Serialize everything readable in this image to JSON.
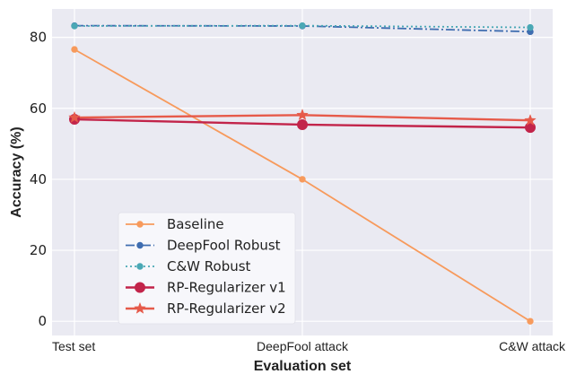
{
  "chart_data": {
    "type": "line",
    "title": "",
    "xlabel": "Evaluation set",
    "ylabel": "Accuracy (%)",
    "categories": [
      "Test set",
      "DeepFool attack",
      "C&W attack"
    ],
    "ylim": [
      -4,
      88
    ],
    "yticks": [
      0,
      20,
      40,
      60,
      80
    ],
    "grid": true,
    "legend_position": "lower-left",
    "series": [
      {
        "name": "Baseline",
        "values": [
          76.6,
          40.0,
          0.0
        ],
        "color": "#f79a5c",
        "marker": "circle",
        "linestyle": "solid"
      },
      {
        "name": "DeepFool Robust",
        "values": [
          83.3,
          83.2,
          81.6
        ],
        "color": "#3f6db0",
        "marker": "circle",
        "linestyle": "dashdot"
      },
      {
        "name": "C&W Robust",
        "values": [
          83.2,
          83.3,
          82.8
        ],
        "color": "#4aa8b5",
        "marker": "circle",
        "linestyle": "dotted"
      },
      {
        "name": "RP-Regularizer v1",
        "values": [
          56.9,
          55.4,
          54.6
        ],
        "color": "#c2244a",
        "marker": "circle",
        "linestyle": "solid"
      },
      {
        "name": "RP-Regularizer v2",
        "values": [
          57.4,
          58.1,
          56.6
        ],
        "color": "#e65a4a",
        "marker": "star",
        "linestyle": "solid"
      }
    ]
  }
}
